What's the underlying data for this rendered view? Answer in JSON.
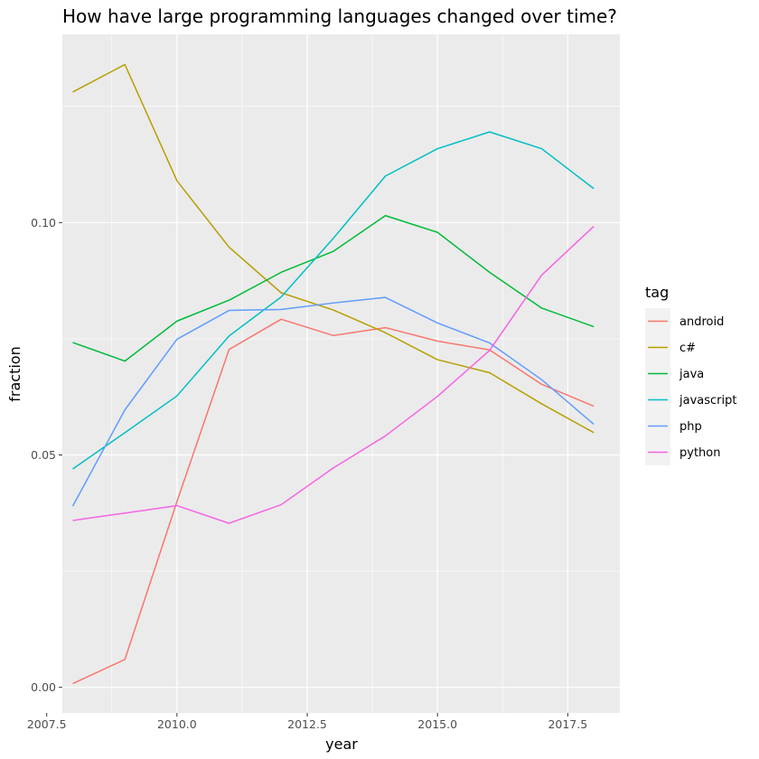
{
  "chart_data": {
    "type": "line",
    "title": "How have large programming languages changed over time?",
    "xlabel": "year",
    "ylabel": "fraction",
    "xlim": [
      2007.8,
      2018.5
    ],
    "ylim": [
      -0.0055,
      0.1405
    ],
    "x_ticks": [
      2007.5,
      2010.0,
      2012.5,
      2015.0,
      2017.5
    ],
    "x_tick_labels": [
      "2007.5",
      "2010.0",
      "2012.5",
      "2015.0",
      "2017.5"
    ],
    "y_ticks": [
      0.0,
      0.05,
      0.1
    ],
    "y_tick_labels": [
      "0.00",
      "0.05",
      "0.10"
    ],
    "grid": true,
    "background": "#ebebeb",
    "legend": {
      "title": "tag",
      "position": "right"
    },
    "x": [
      2008,
      2009,
      2010,
      2011,
      2012,
      2013,
      2014,
      2015,
      2016,
      2017,
      2018
    ],
    "series": [
      {
        "name": "android",
        "color": "#F8766D",
        "values": [
          0.0008,
          0.006,
          0.04,
          0.0727,
          0.0792,
          0.0757,
          0.0774,
          0.0745,
          0.0726,
          0.0652,
          0.0605
        ]
      },
      {
        "name": "c#",
        "color": "#B79F00",
        "values": [
          0.1281,
          0.134,
          0.109,
          0.0947,
          0.0849,
          0.0812,
          0.0763,
          0.0705,
          0.0677,
          0.061,
          0.0548
        ]
      },
      {
        "name": "java",
        "color": "#00BA38",
        "values": [
          0.0742,
          0.0702,
          0.0788,
          0.0833,
          0.0893,
          0.0938,
          0.1015,
          0.0979,
          0.0893,
          0.0816,
          0.0776
        ]
      },
      {
        "name": "javascript",
        "color": "#00BFC4",
        "values": [
          0.047,
          0.0548,
          0.0627,
          0.0756,
          0.084,
          0.0966,
          0.11,
          0.1159,
          0.1195,
          0.1159,
          0.1073
        ]
      },
      {
        "name": "php",
        "color": "#619CFF",
        "values": [
          0.039,
          0.0597,
          0.0749,
          0.0811,
          0.0813,
          0.0827,
          0.0839,
          0.0784,
          0.0741,
          0.0662,
          0.0566
        ]
      },
      {
        "name": "python",
        "color": "#F564E3",
        "values": [
          0.0359,
          0.0375,
          0.0391,
          0.0353,
          0.0393,
          0.0472,
          0.0541,
          0.0626,
          0.0725,
          0.0887,
          0.0992
        ]
      }
    ]
  }
}
